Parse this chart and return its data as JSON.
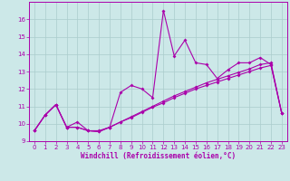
{
  "xlabel": "Windchill (Refroidissement éolien,°C)",
  "background_color": "#cce8e8",
  "grid_color": "#aacccc",
  "line_color": "#aa00aa",
  "spine_color": "#aa00aa",
  "xlim": [
    -0.5,
    23.5
  ],
  "ylim": [
    9,
    17
  ],
  "yticks": [
    9,
    10,
    11,
    12,
    13,
    14,
    15,
    16
  ],
  "xticks": [
    0,
    1,
    2,
    3,
    4,
    5,
    6,
    7,
    8,
    9,
    10,
    11,
    12,
    13,
    14,
    15,
    16,
    17,
    18,
    19,
    20,
    21,
    22,
    23
  ],
  "series1_x": [
    0,
    1,
    2,
    3,
    4,
    5,
    6,
    7,
    8,
    9,
    10,
    11,
    12,
    13,
    14,
    15,
    16,
    17,
    18,
    19,
    20,
    21,
    22,
    23
  ],
  "series1_y": [
    9.6,
    10.5,
    11.1,
    9.8,
    10.1,
    9.6,
    9.6,
    9.8,
    11.8,
    12.2,
    12.0,
    11.5,
    16.5,
    13.9,
    14.8,
    13.5,
    13.4,
    12.6,
    13.1,
    13.5,
    13.5,
    13.8,
    13.4,
    10.6
  ],
  "series2_x": [
    0,
    1,
    2,
    3,
    4,
    5,
    6,
    7,
    8,
    9,
    10,
    11,
    12,
    13,
    14,
    15,
    16,
    17,
    18,
    19,
    20,
    21,
    22,
    23
  ],
  "series2_y": [
    9.6,
    10.5,
    11.1,
    9.8,
    9.8,
    9.6,
    9.55,
    9.8,
    10.1,
    10.35,
    10.65,
    10.95,
    11.2,
    11.5,
    11.75,
    12.0,
    12.2,
    12.4,
    12.6,
    12.8,
    13.0,
    13.2,
    13.35,
    10.6
  ],
  "series3_x": [
    0,
    1,
    2,
    3,
    4,
    5,
    6,
    7,
    8,
    9,
    10,
    11,
    12,
    13,
    14,
    15,
    16,
    17,
    18,
    19,
    20,
    21,
    22,
    23
  ],
  "series3_y": [
    9.6,
    10.5,
    11.1,
    9.8,
    9.8,
    9.6,
    9.55,
    9.8,
    10.1,
    10.4,
    10.7,
    11.0,
    11.3,
    11.6,
    11.85,
    12.1,
    12.35,
    12.55,
    12.75,
    12.95,
    13.15,
    13.4,
    13.5,
    10.6
  ],
  "tick_labelsize": 5,
  "xlabel_fontsize": 5.5,
  "marker_size": 2.0,
  "linewidth": 0.8
}
